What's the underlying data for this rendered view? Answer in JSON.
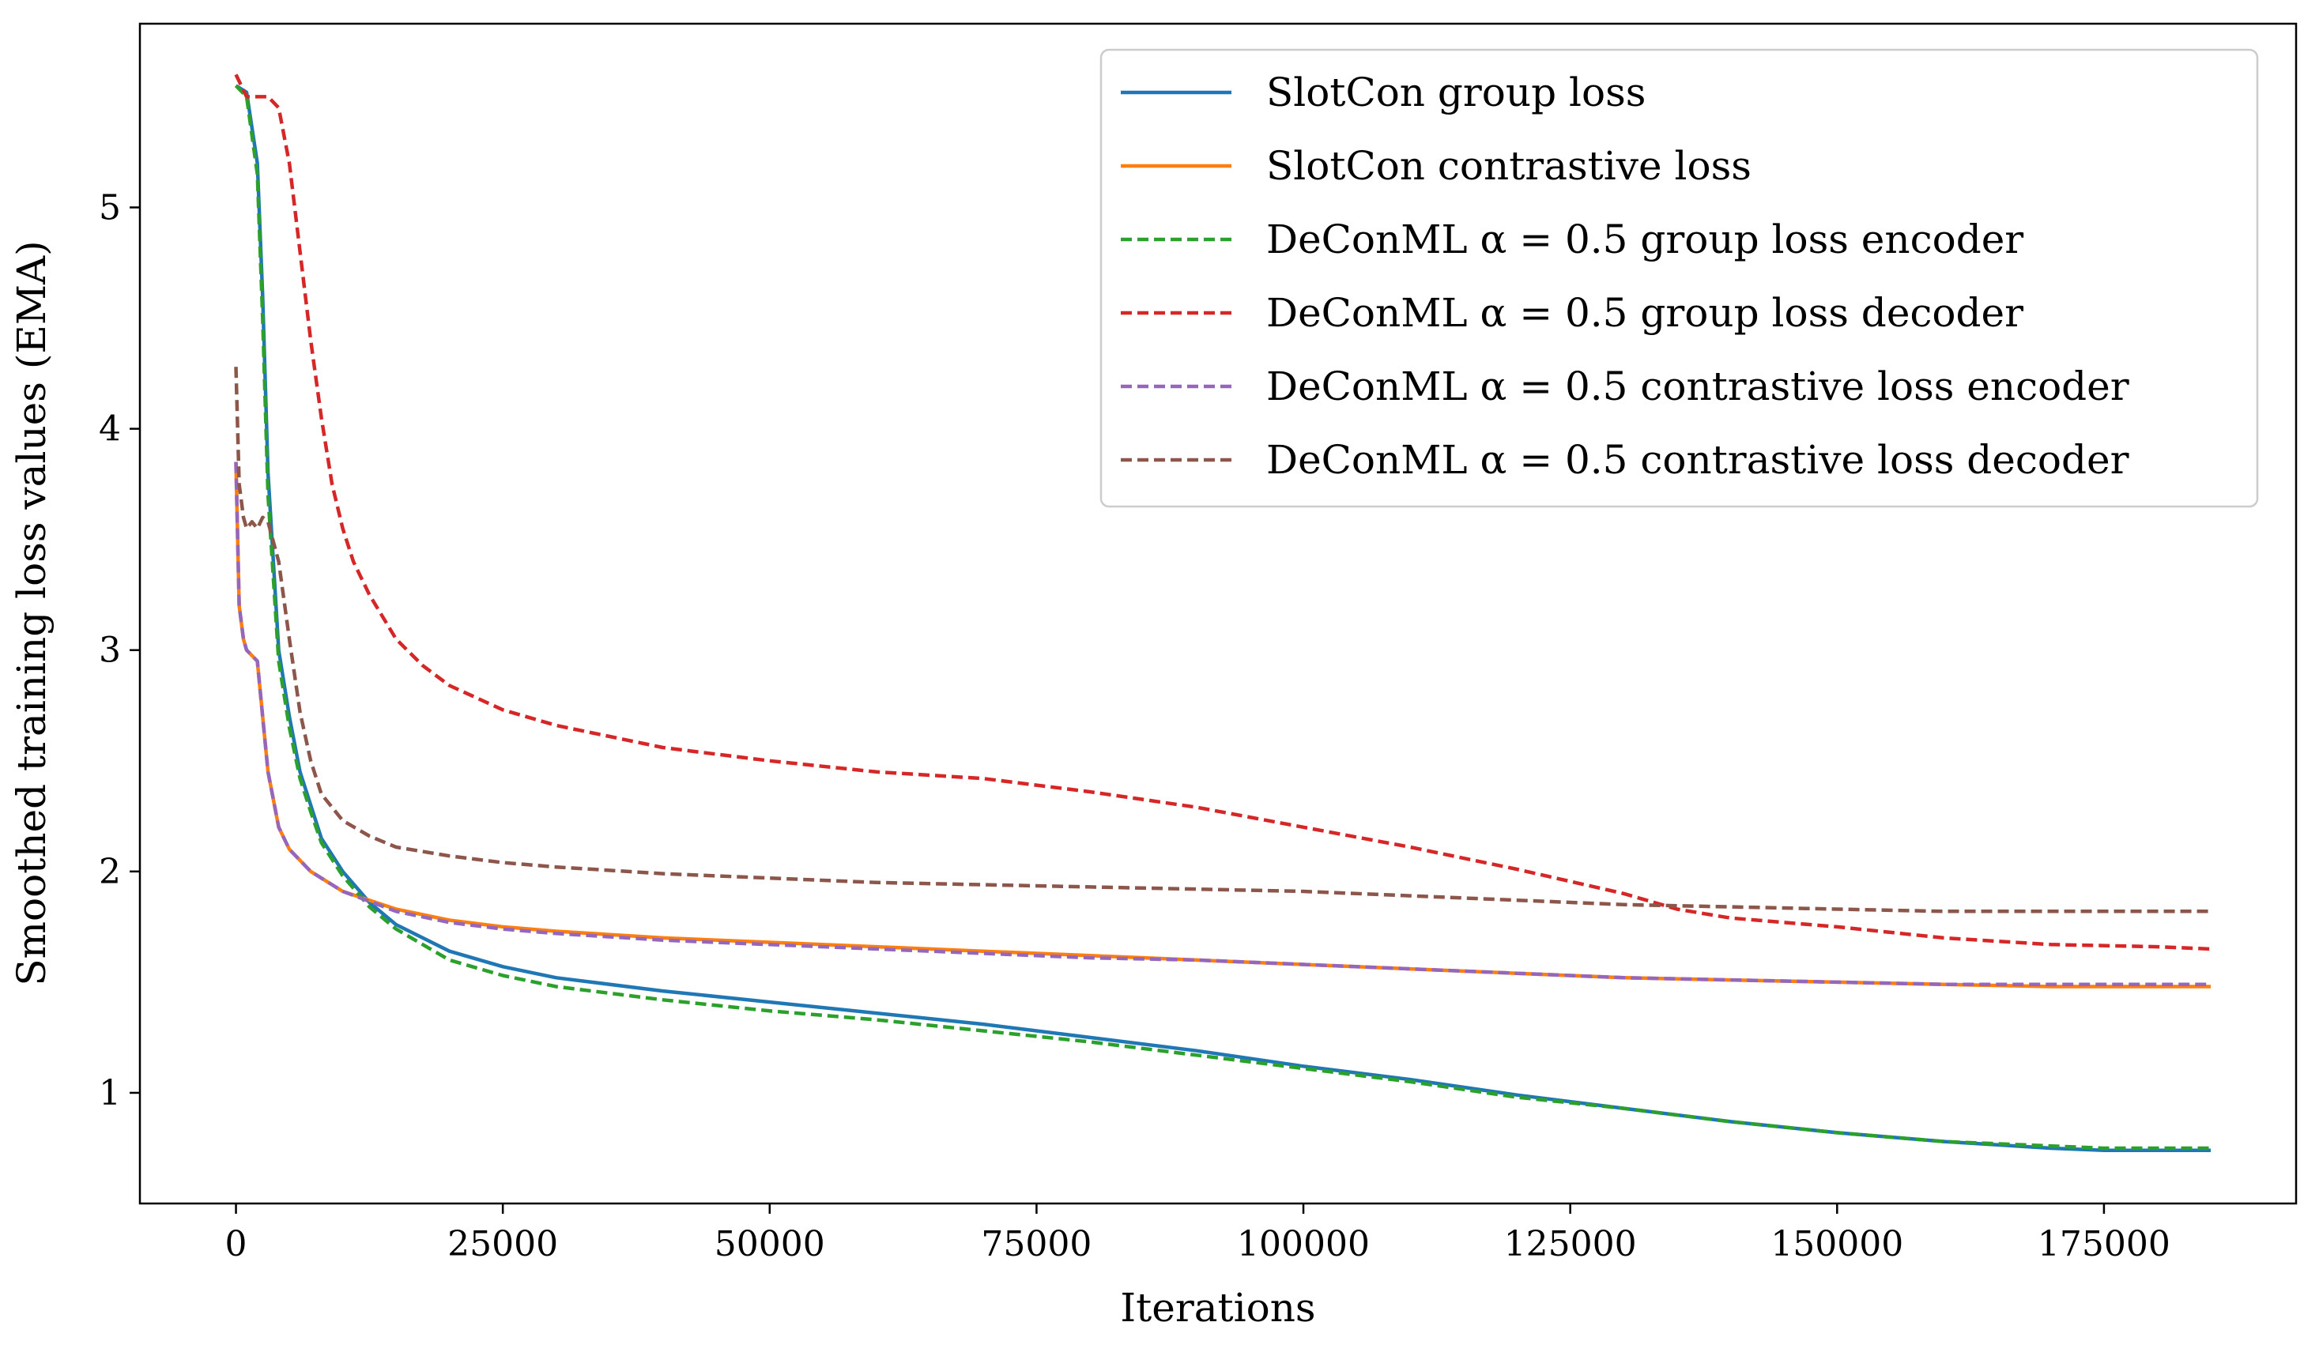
{
  "chart_data": {
    "type": "line",
    "title": "",
    "xlabel": "Iterations",
    "ylabel": "Smoothed training loss values (EMA)",
    "xlim": [
      -9000,
      193000
    ],
    "ylim": [
      0.5,
      5.83
    ],
    "xticks": [
      0,
      25000,
      50000,
      75000,
      100000,
      125000,
      150000,
      175000
    ],
    "xtick_labels": [
      "0",
      "25000",
      "50000",
      "75000",
      "100000",
      "125000",
      "150000",
      "175000"
    ],
    "yticks": [
      1,
      2,
      3,
      4,
      5
    ],
    "ytick_labels": [
      "1",
      "2",
      "3",
      "4",
      "5"
    ],
    "grid": false,
    "legend_position": "top-right",
    "series": [
      {
        "name": "SlotCon group loss",
        "color": "#1f77b4",
        "style": "solid",
        "x": [
          0,
          1000,
          2000,
          2500,
          3000,
          4000,
          5000,
          6000,
          7000,
          8000,
          10000,
          12500,
          15000,
          20000,
          25000,
          30000,
          40000,
          50000,
          60000,
          70000,
          80000,
          90000,
          100000,
          110000,
          120000,
          130000,
          140000,
          150000,
          160000,
          170000,
          175000,
          180000,
          185000
        ],
        "y": [
          5.55,
          5.52,
          5.2,
          4.6,
          3.8,
          3.0,
          2.7,
          2.45,
          2.3,
          2.15,
          2.0,
          1.86,
          1.76,
          1.64,
          1.57,
          1.52,
          1.46,
          1.41,
          1.36,
          1.31,
          1.25,
          1.19,
          1.12,
          1.06,
          0.99,
          0.93,
          0.87,
          0.82,
          0.78,
          0.75,
          0.74,
          0.74,
          0.74
        ]
      },
      {
        "name": "SlotCon contrastive loss",
        "color": "#ff7f0e",
        "style": "solid",
        "x": [
          0,
          300,
          700,
          1000,
          2000,
          2500,
          3000,
          4000,
          5000,
          7000,
          10000,
          15000,
          20000,
          25000,
          30000,
          40000,
          50000,
          60000,
          70000,
          80000,
          90000,
          100000,
          110000,
          120000,
          130000,
          140000,
          150000,
          160000,
          170000,
          180000,
          185000
        ],
        "y": [
          3.85,
          3.2,
          3.05,
          3.0,
          2.95,
          2.7,
          2.45,
          2.2,
          2.1,
          2.0,
          1.91,
          1.83,
          1.78,
          1.75,
          1.73,
          1.7,
          1.68,
          1.66,
          1.64,
          1.62,
          1.6,
          1.58,
          1.56,
          1.54,
          1.52,
          1.51,
          1.5,
          1.49,
          1.48,
          1.48,
          1.48
        ]
      },
      {
        "name": "DeConML α = 0.5 group loss encoder",
        "color": "#2ca02c",
        "style": "dashed",
        "x": [
          0,
          1000,
          2000,
          2500,
          3000,
          4000,
          5000,
          6000,
          7000,
          8000,
          10000,
          12500,
          15000,
          20000,
          25000,
          30000,
          40000,
          50000,
          60000,
          70000,
          80000,
          90000,
          100000,
          110000,
          120000,
          130000,
          140000,
          150000,
          160000,
          170000,
          175000,
          180000,
          185000
        ],
        "y": [
          5.55,
          5.5,
          5.15,
          4.5,
          3.7,
          2.95,
          2.65,
          2.42,
          2.27,
          2.13,
          1.98,
          1.84,
          1.74,
          1.6,
          1.53,
          1.48,
          1.42,
          1.37,
          1.33,
          1.28,
          1.23,
          1.17,
          1.11,
          1.05,
          0.98,
          0.93,
          0.87,
          0.82,
          0.78,
          0.76,
          0.75,
          0.75,
          0.75
        ]
      },
      {
        "name": "DeConML α = 0.5 group loss decoder",
        "color": "#d62728",
        "style": "dashed",
        "x": [
          0,
          1000,
          2000,
          3000,
          4000,
          5000,
          6000,
          7000,
          8000,
          9000,
          10000,
          11000,
          12500,
          15000,
          17500,
          20000,
          25000,
          30000,
          40000,
          50000,
          60000,
          70000,
          80000,
          90000,
          100000,
          110000,
          120000,
          130000,
          135000,
          140000,
          150000,
          160000,
          170000,
          180000,
          185000
        ],
        "y": [
          5.6,
          5.5,
          5.5,
          5.5,
          5.45,
          5.2,
          4.8,
          4.4,
          4.05,
          3.75,
          3.55,
          3.4,
          3.25,
          3.05,
          2.93,
          2.84,
          2.73,
          2.66,
          2.56,
          2.5,
          2.45,
          2.42,
          2.36,
          2.29,
          2.2,
          2.11,
          2.01,
          1.9,
          1.83,
          1.79,
          1.75,
          1.7,
          1.67,
          1.66,
          1.65
        ]
      },
      {
        "name": "DeConML α = 0.5 contrastive loss encoder",
        "color": "#9467bd",
        "style": "dashed",
        "x": [
          0,
          300,
          700,
          1000,
          2000,
          2500,
          3000,
          4000,
          5000,
          7000,
          10000,
          15000,
          20000,
          25000,
          30000,
          40000,
          50000,
          60000,
          70000,
          80000,
          90000,
          100000,
          110000,
          120000,
          130000,
          140000,
          150000,
          160000,
          170000,
          180000,
          185000
        ],
        "y": [
          3.85,
          3.2,
          3.05,
          3.0,
          2.95,
          2.7,
          2.45,
          2.2,
          2.1,
          2.0,
          1.91,
          1.82,
          1.77,
          1.74,
          1.72,
          1.69,
          1.67,
          1.65,
          1.63,
          1.61,
          1.6,
          1.58,
          1.56,
          1.54,
          1.52,
          1.51,
          1.5,
          1.49,
          1.49,
          1.49,
          1.49
        ]
      },
      {
        "name": "DeConML α = 0.5 contrastive loss decoder",
        "color": "#8c564b",
        "style": "dashed",
        "x": [
          0,
          300,
          700,
          1000,
          1500,
          2000,
          2500,
          3000,
          4000,
          5000,
          6000,
          7000,
          8000,
          10000,
          12500,
          15000,
          20000,
          25000,
          30000,
          40000,
          50000,
          60000,
          70000,
          80000,
          90000,
          100000,
          110000,
          120000,
          130000,
          140000,
          150000,
          160000,
          170000,
          180000,
          185000
        ],
        "y": [
          4.28,
          3.75,
          3.6,
          3.55,
          3.58,
          3.55,
          3.6,
          3.58,
          3.4,
          3.05,
          2.72,
          2.5,
          2.35,
          2.23,
          2.16,
          2.11,
          2.07,
          2.04,
          2.02,
          1.99,
          1.97,
          1.95,
          1.94,
          1.93,
          1.92,
          1.91,
          1.89,
          1.87,
          1.85,
          1.84,
          1.83,
          1.82,
          1.82,
          1.82,
          1.82
        ]
      }
    ]
  }
}
